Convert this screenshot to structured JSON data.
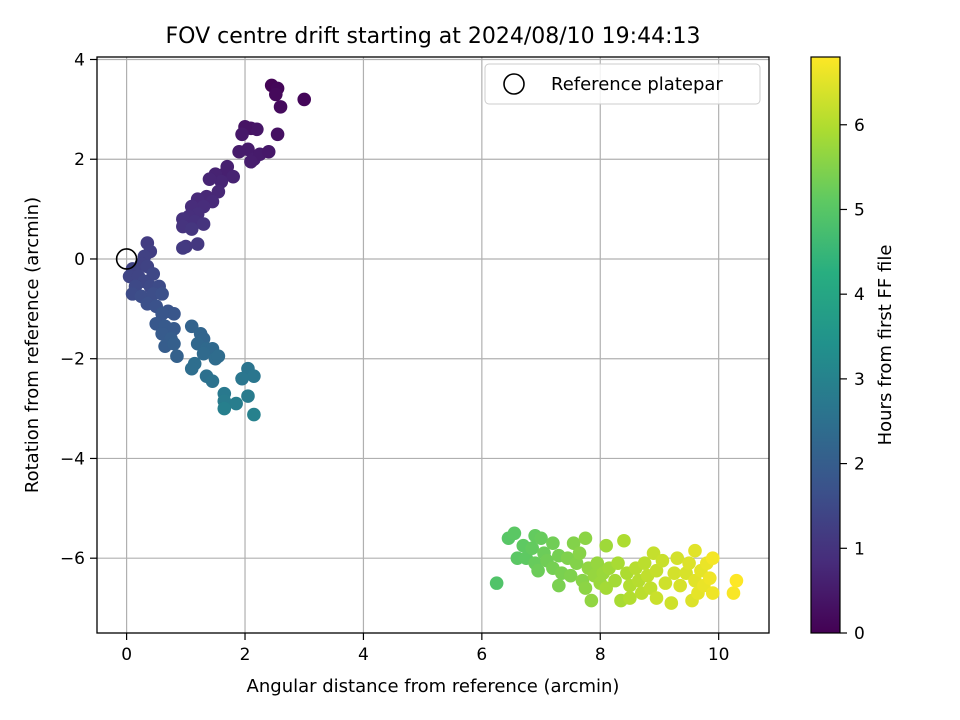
{
  "chart_data": {
    "type": "scatter",
    "title": "FOV centre drift starting at 2024/08/10 19:44:13",
    "xlabel": "Angular distance from reference (arcmin)",
    "ylabel": "Rotation from reference (arcmin)",
    "xlim": [
      -0.5,
      10.85
    ],
    "ylim": [
      -7.5,
      4.05
    ],
    "xticks": [
      0,
      2,
      4,
      6,
      8,
      10
    ],
    "yticks": [
      4,
      2,
      0,
      -2,
      -4,
      -6
    ],
    "xtick_labels": [
      "0",
      "2",
      "4",
      "6",
      "8",
      "10"
    ],
    "ytick_labels": [
      "4",
      "2",
      "0",
      "−2",
      "−4",
      "−6"
    ],
    "grid": true,
    "legend": {
      "placement": "top-right",
      "entries": [
        "Reference platepar"
      ]
    },
    "reference_point": {
      "x": 0,
      "y": 0,
      "label": "Reference platepar"
    },
    "colorbar": {
      "label": "Hours from first FF file",
      "range": [
        0,
        6.8
      ],
      "ticks": [
        0,
        1,
        2,
        3,
        4,
        5,
        6
      ],
      "tick_labels": [
        "0",
        "1",
        "2",
        "3",
        "4",
        "5",
        "6"
      ],
      "colormap": "viridis"
    },
    "points": [
      {
        "x": 2.45,
        "y": 3.48,
        "c": 0.05
      },
      {
        "x": 2.55,
        "y": 3.42,
        "c": 0.1
      },
      {
        "x": 2.52,
        "y": 3.3,
        "c": 0.15
      },
      {
        "x": 2.6,
        "y": 3.05,
        "c": 0.2
      },
      {
        "x": 3.0,
        "y": 3.2,
        "c": 0.1
      },
      {
        "x": 2.55,
        "y": 2.5,
        "c": 0.3
      },
      {
        "x": 2.1,
        "y": 2.62,
        "c": 0.35
      },
      {
        "x": 2.2,
        "y": 2.6,
        "c": 0.4
      },
      {
        "x": 2.0,
        "y": 2.65,
        "c": 0.35
      },
      {
        "x": 1.95,
        "y": 2.5,
        "c": 0.45
      },
      {
        "x": 2.05,
        "y": 2.2,
        "c": 0.5
      },
      {
        "x": 2.15,
        "y": 2.0,
        "c": 0.55
      },
      {
        "x": 2.25,
        "y": 2.1,
        "c": 0.5
      },
      {
        "x": 2.4,
        "y": 2.15,
        "c": 0.45
      },
      {
        "x": 1.9,
        "y": 2.15,
        "c": 0.5
      },
      {
        "x": 2.1,
        "y": 1.95,
        "c": 0.55
      },
      {
        "x": 1.7,
        "y": 1.85,
        "c": 0.6
      },
      {
        "x": 1.65,
        "y": 1.7,
        "c": 0.6
      },
      {
        "x": 1.8,
        "y": 1.65,
        "c": 0.65
      },
      {
        "x": 1.5,
        "y": 1.7,
        "c": 0.65
      },
      {
        "x": 1.6,
        "y": 1.55,
        "c": 0.7
      },
      {
        "x": 1.4,
        "y": 1.6,
        "c": 0.7
      },
      {
        "x": 1.55,
        "y": 1.35,
        "c": 0.75
      },
      {
        "x": 1.35,
        "y": 1.25,
        "c": 0.75
      },
      {
        "x": 1.2,
        "y": 1.2,
        "c": 0.8
      },
      {
        "x": 1.45,
        "y": 1.15,
        "c": 0.8
      },
      {
        "x": 1.3,
        "y": 1.05,
        "c": 0.85
      },
      {
        "x": 1.1,
        "y": 1.05,
        "c": 0.85
      },
      {
        "x": 1.2,
        "y": 0.9,
        "c": 0.9
      },
      {
        "x": 1.05,
        "y": 0.85,
        "c": 0.9
      },
      {
        "x": 0.95,
        "y": 0.8,
        "c": 0.95
      },
      {
        "x": 1.15,
        "y": 0.75,
        "c": 0.95
      },
      {
        "x": 1.3,
        "y": 0.7,
        "c": 1.0
      },
      {
        "x": 0.95,
        "y": 0.65,
        "c": 1.0
      },
      {
        "x": 1.1,
        "y": 0.6,
        "c": 1.05
      },
      {
        "x": 1.2,
        "y": 0.3,
        "c": 1.1
      },
      {
        "x": 1.0,
        "y": 0.25,
        "c": 1.1
      },
      {
        "x": 0.95,
        "y": 0.22,
        "c": 1.15
      },
      {
        "x": 0.35,
        "y": 0.32,
        "c": 1.2
      },
      {
        "x": 0.4,
        "y": 0.15,
        "c": 1.25
      },
      {
        "x": 0.3,
        "y": 0.05,
        "c": 1.3
      },
      {
        "x": 0.25,
        "y": -0.1,
        "c": 1.3
      },
      {
        "x": 0.1,
        "y": -0.2,
        "c": 1.35
      },
      {
        "x": 0.35,
        "y": -0.15,
        "c": 1.35
      },
      {
        "x": 0.05,
        "y": -0.35,
        "c": 1.4
      },
      {
        "x": 0.2,
        "y": -0.35,
        "c": 1.4
      },
      {
        "x": 0.45,
        "y": -0.3,
        "c": 1.45
      },
      {
        "x": 0.3,
        "y": -0.45,
        "c": 1.45
      },
      {
        "x": 0.15,
        "y": -0.55,
        "c": 1.5
      },
      {
        "x": 0.4,
        "y": -0.55,
        "c": 1.5
      },
      {
        "x": 0.55,
        "y": -0.55,
        "c": 1.55
      },
      {
        "x": 0.1,
        "y": -0.7,
        "c": 1.55
      },
      {
        "x": 0.25,
        "y": -0.75,
        "c": 1.6
      },
      {
        "x": 0.45,
        "y": -0.7,
        "c": 1.6
      },
      {
        "x": 0.6,
        "y": -0.7,
        "c": 1.65
      },
      {
        "x": 0.35,
        "y": -0.9,
        "c": 1.65
      },
      {
        "x": 0.5,
        "y": -0.95,
        "c": 1.7
      },
      {
        "x": 0.7,
        "y": -1.05,
        "c": 1.75
      },
      {
        "x": 0.8,
        "y": -1.1,
        "c": 1.8
      },
      {
        "x": 0.6,
        "y": -1.1,
        "c": 1.8
      },
      {
        "x": 0.5,
        "y": -1.3,
        "c": 1.85
      },
      {
        "x": 0.65,
        "y": -1.35,
        "c": 1.9
      },
      {
        "x": 0.8,
        "y": -1.4,
        "c": 1.9
      },
      {
        "x": 0.6,
        "y": -1.5,
        "c": 1.95
      },
      {
        "x": 0.75,
        "y": -1.6,
        "c": 2.0
      },
      {
        "x": 0.65,
        "y": -1.75,
        "c": 2.0
      },
      {
        "x": 0.8,
        "y": -1.7,
        "c": 2.05
      },
      {
        "x": 0.85,
        "y": -1.95,
        "c": 2.1
      },
      {
        "x": 1.1,
        "y": -1.35,
        "c": 2.15
      },
      {
        "x": 1.25,
        "y": -1.5,
        "c": 2.2
      },
      {
        "x": 1.3,
        "y": -1.6,
        "c": 2.2
      },
      {
        "x": 1.2,
        "y": -1.7,
        "c": 2.25
      },
      {
        "x": 1.35,
        "y": -1.8,
        "c": 2.3
      },
      {
        "x": 1.45,
        "y": -1.8,
        "c": 2.3
      },
      {
        "x": 1.3,
        "y": -1.9,
        "c": 2.35
      },
      {
        "x": 1.5,
        "y": -2.0,
        "c": 2.4
      },
      {
        "x": 1.55,
        "y": -1.95,
        "c": 2.4
      },
      {
        "x": 1.15,
        "y": -2.1,
        "c": 2.45
      },
      {
        "x": 1.1,
        "y": -2.2,
        "c": 2.45
      },
      {
        "x": 1.35,
        "y": -2.35,
        "c": 2.5
      },
      {
        "x": 1.45,
        "y": -2.45,
        "c": 2.55
      },
      {
        "x": 2.05,
        "y": -2.2,
        "c": 2.6
      },
      {
        "x": 2.15,
        "y": -2.35,
        "c": 2.65
      },
      {
        "x": 1.95,
        "y": -2.4,
        "c": 2.65
      },
      {
        "x": 1.65,
        "y": -2.7,
        "c": 2.75
      },
      {
        "x": 1.65,
        "y": -2.85,
        "c": 2.8
      },
      {
        "x": 2.05,
        "y": -2.75,
        "c": 2.8
      },
      {
        "x": 1.85,
        "y": -2.9,
        "c": 2.85
      },
      {
        "x": 1.65,
        "y": -3.0,
        "c": 2.9
      },
      {
        "x": 2.15,
        "y": -3.12,
        "c": 2.95
      },
      {
        "x": 6.25,
        "y": -6.5,
        "c": 4.9
      },
      {
        "x": 6.45,
        "y": -5.6,
        "c": 5.0
      },
      {
        "x": 6.55,
        "y": -5.5,
        "c": 5.05
      },
      {
        "x": 6.6,
        "y": -6.0,
        "c": 5.05
      },
      {
        "x": 6.7,
        "y": -5.75,
        "c": 5.1
      },
      {
        "x": 6.75,
        "y": -6.0,
        "c": 5.1
      },
      {
        "x": 6.9,
        "y": -5.55,
        "c": 5.15
      },
      {
        "x": 6.85,
        "y": -5.8,
        "c": 5.15
      },
      {
        "x": 6.9,
        "y": -6.1,
        "c": 5.2
      },
      {
        "x": 7.0,
        "y": -5.6,
        "c": 5.2
      },
      {
        "x": 7.05,
        "y": -5.9,
        "c": 5.25
      },
      {
        "x": 6.95,
        "y": -6.25,
        "c": 5.25
      },
      {
        "x": 7.1,
        "y": -6.05,
        "c": 5.3
      },
      {
        "x": 7.2,
        "y": -5.7,
        "c": 5.3
      },
      {
        "x": 7.2,
        "y": -6.2,
        "c": 5.35
      },
      {
        "x": 7.3,
        "y": -5.95,
        "c": 5.35
      },
      {
        "x": 7.35,
        "y": -6.3,
        "c": 5.4
      },
      {
        "x": 7.3,
        "y": -6.55,
        "c": 5.4
      },
      {
        "x": 7.45,
        "y": -6.0,
        "c": 5.45
      },
      {
        "x": 7.5,
        "y": -6.35,
        "c": 5.45
      },
      {
        "x": 7.55,
        "y": -5.7,
        "c": 5.5
      },
      {
        "x": 7.6,
        "y": -6.1,
        "c": 5.5
      },
      {
        "x": 7.65,
        "y": -5.9,
        "c": 5.55
      },
      {
        "x": 7.7,
        "y": -6.45,
        "c": 5.55
      },
      {
        "x": 7.75,
        "y": -6.6,
        "c": 5.6
      },
      {
        "x": 7.75,
        "y": -5.6,
        "c": 5.6
      },
      {
        "x": 7.8,
        "y": -6.2,
        "c": 5.65
      },
      {
        "x": 7.85,
        "y": -6.85,
        "c": 5.65
      },
      {
        "x": 7.9,
        "y": -6.35,
        "c": 5.7
      },
      {
        "x": 7.95,
        "y": -6.1,
        "c": 5.7
      },
      {
        "x": 8.0,
        "y": -6.5,
        "c": 5.75
      },
      {
        "x": 8.05,
        "y": -6.3,
        "c": 5.75
      },
      {
        "x": 8.1,
        "y": -5.75,
        "c": 5.8
      },
      {
        "x": 8.15,
        "y": -6.2,
        "c": 5.8
      },
      {
        "x": 8.1,
        "y": -6.6,
        "c": 5.85
      },
      {
        "x": 8.25,
        "y": -6.45,
        "c": 5.85
      },
      {
        "x": 8.3,
        "y": -6.1,
        "c": 5.9
      },
      {
        "x": 8.35,
        "y": -6.85,
        "c": 5.9
      },
      {
        "x": 8.4,
        "y": -5.65,
        "c": 5.95
      },
      {
        "x": 8.45,
        "y": -6.3,
        "c": 5.95
      },
      {
        "x": 8.5,
        "y": -6.55,
        "c": 6.0
      },
      {
        "x": 8.5,
        "y": -6.8,
        "c": 6.0
      },
      {
        "x": 8.6,
        "y": -6.2,
        "c": 6.05
      },
      {
        "x": 8.65,
        "y": -6.45,
        "c": 6.05
      },
      {
        "x": 8.7,
        "y": -6.7,
        "c": 6.1
      },
      {
        "x": 8.75,
        "y": -6.1,
        "c": 6.1
      },
      {
        "x": 8.8,
        "y": -6.35,
        "c": 6.15
      },
      {
        "x": 8.85,
        "y": -6.6,
        "c": 6.15
      },
      {
        "x": 8.9,
        "y": -5.9,
        "c": 6.2
      },
      {
        "x": 8.95,
        "y": -6.25,
        "c": 6.2
      },
      {
        "x": 8.95,
        "y": -6.8,
        "c": 6.25
      },
      {
        "x": 9.05,
        "y": -6.05,
        "c": 6.25
      },
      {
        "x": 9.1,
        "y": -6.5,
        "c": 6.3
      },
      {
        "x": 9.2,
        "y": -6.9,
        "c": 6.3
      },
      {
        "x": 9.25,
        "y": -6.3,
        "c": 6.35
      },
      {
        "x": 9.3,
        "y": -6.0,
        "c": 6.35
      },
      {
        "x": 9.35,
        "y": -6.55,
        "c": 6.4
      },
      {
        "x": 9.45,
        "y": -6.3,
        "c": 6.4
      },
      {
        "x": 9.5,
        "y": -6.1,
        "c": 6.45
      },
      {
        "x": 9.55,
        "y": -6.85,
        "c": 6.45
      },
      {
        "x": 9.6,
        "y": -5.85,
        "c": 6.5
      },
      {
        "x": 9.6,
        "y": -6.45,
        "c": 6.5
      },
      {
        "x": 9.65,
        "y": -6.7,
        "c": 6.55
      },
      {
        "x": 9.7,
        "y": -6.25,
        "c": 6.55
      },
      {
        "x": 9.75,
        "y": -6.55,
        "c": 6.6
      },
      {
        "x": 9.8,
        "y": -6.1,
        "c": 6.6
      },
      {
        "x": 9.85,
        "y": -6.4,
        "c": 6.65
      },
      {
        "x": 9.9,
        "y": -6.7,
        "c": 6.65
      },
      {
        "x": 9.9,
        "y": -6.0,
        "c": 6.7
      },
      {
        "x": 10.25,
        "y": -6.7,
        "c": 6.75
      },
      {
        "x": 10.3,
        "y": -6.45,
        "c": 6.8
      }
    ]
  }
}
